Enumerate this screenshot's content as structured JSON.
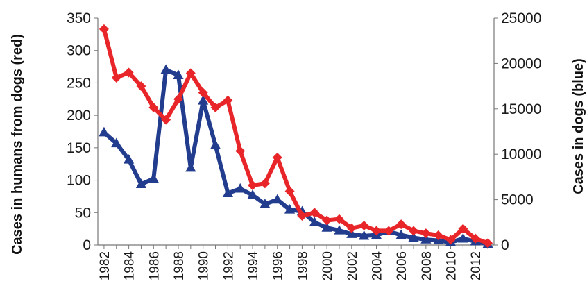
{
  "chart_data": {
    "type": "line",
    "title": "",
    "x": [
      1982,
      1983,
      1984,
      1985,
      1986,
      1987,
      1988,
      1989,
      1990,
      1991,
      1992,
      1993,
      1994,
      1995,
      1996,
      1997,
      1998,
      1999,
      2000,
      2001,
      2002,
      2003,
      2004,
      2005,
      2006,
      2007,
      2008,
      2009,
      2010,
      2011,
      2012,
      2013
    ],
    "x_tick_labels": [
      "1982",
      "1984",
      "1986",
      "1988",
      "1990",
      "1992",
      "1994",
      "1996",
      "1998",
      "2000",
      "2002",
      "2004",
      "2006",
      "2008",
      "2010",
      "2012"
    ],
    "ylabel_left": "Cases in humans from dogs (red)",
    "ylabel_right": "Cases in dogs (blue)",
    "ylim_left": [
      0,
      350
    ],
    "ylim_right": [
      0,
      25000
    ],
    "y_ticks_left": [
      "0",
      "50",
      "100",
      "150",
      "200",
      "250",
      "300",
      "350"
    ],
    "y_ticks_right": [
      "0",
      "5000",
      "10000",
      "15000",
      "20000",
      "25000"
    ],
    "grid": false,
    "series": [
      {
        "axis": "left",
        "color": "#e8262a",
        "marker": "diamond",
        "values": [
          333,
          258,
          266,
          245,
          212,
          193,
          225,
          265,
          235,
          212,
          223,
          145,
          92,
          95,
          135,
          83,
          45,
          50,
          38,
          40,
          26,
          30,
          22,
          22,
          32,
          22,
          18,
          15,
          8,
          25,
          10,
          3
        ]
      },
      {
        "axis": "right",
        "color": "#223c8e",
        "marker": "triangle",
        "values": [
          12400,
          11200,
          9400,
          6700,
          7300,
          19300,
          18700,
          8500,
          15900,
          11000,
          5700,
          6200,
          5500,
          4500,
          5000,
          3900,
          3700,
          2500,
          1900,
          1600,
          1200,
          1000,
          1100,
          1500,
          1100,
          800,
          600,
          500,
          300,
          700,
          400,
          100
        ]
      }
    ]
  }
}
